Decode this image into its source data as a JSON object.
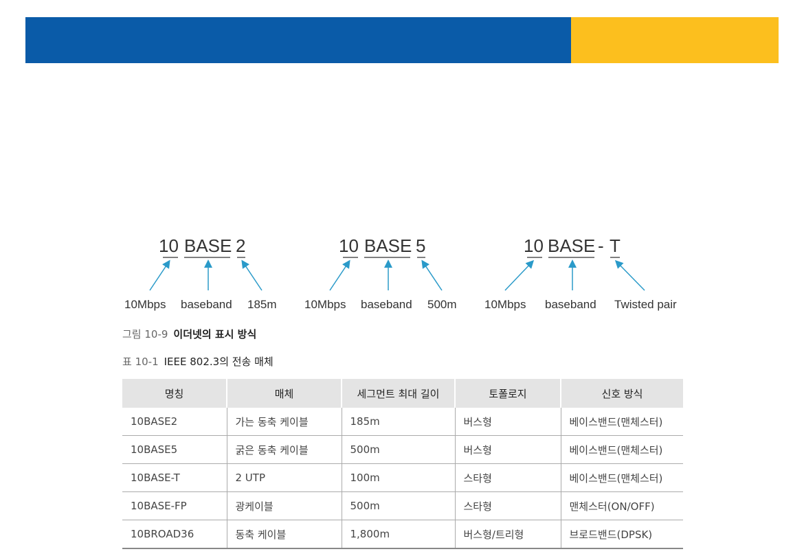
{
  "banner": {
    "colors": {
      "blue": "#0a5ba8",
      "yellow": "#fcbf1e"
    }
  },
  "diagram": {
    "arrow_color": "#2a9ac9",
    "groups": [
      {
        "parts": [
          "10",
          "BASE",
          "2"
        ],
        "labels": [
          "10Mbps",
          "baseband",
          "185m"
        ]
      },
      {
        "parts": [
          "10",
          "BASE",
          "5"
        ],
        "labels": [
          "10Mbps",
          "baseband",
          "500m"
        ]
      },
      {
        "parts": [
          "10",
          "BASE",
          "-",
          "T"
        ],
        "labels": [
          "10Mbps",
          "baseband",
          "Twisted pair"
        ]
      }
    ]
  },
  "figure_caption": {
    "number": "그림 10-9",
    "text": "이더넷의 표시 방식"
  },
  "table_caption": {
    "number": "표 10-1",
    "text": "IEEE 802.3의 전송 매체"
  },
  "table": {
    "headers": [
      "명칭",
      "매체",
      "세그먼트 최대 길이",
      "토폴로지",
      "신호 방식"
    ],
    "rows": [
      [
        "10BASE2",
        "가는 동축 케이블",
        "185m",
        "버스형",
        "베이스밴드(맨체스터)"
      ],
      [
        "10BASE5",
        "굵은 동축 케이블",
        "500m",
        "버스형",
        "베이스밴드(맨체스터)"
      ],
      [
        "10BASE-T",
        "2 UTP",
        "100m",
        "스타형",
        "베이스밴드(맨체스터)"
      ],
      [
        "10BASE-FP",
        "광케이블",
        "500m",
        "스타형",
        "맨체스터(ON/OFF)"
      ],
      [
        "10BROAD36",
        "동축 케이블",
        "1,800m",
        "버스형/트리형",
        "브로드밴드(DPSK)"
      ]
    ]
  }
}
